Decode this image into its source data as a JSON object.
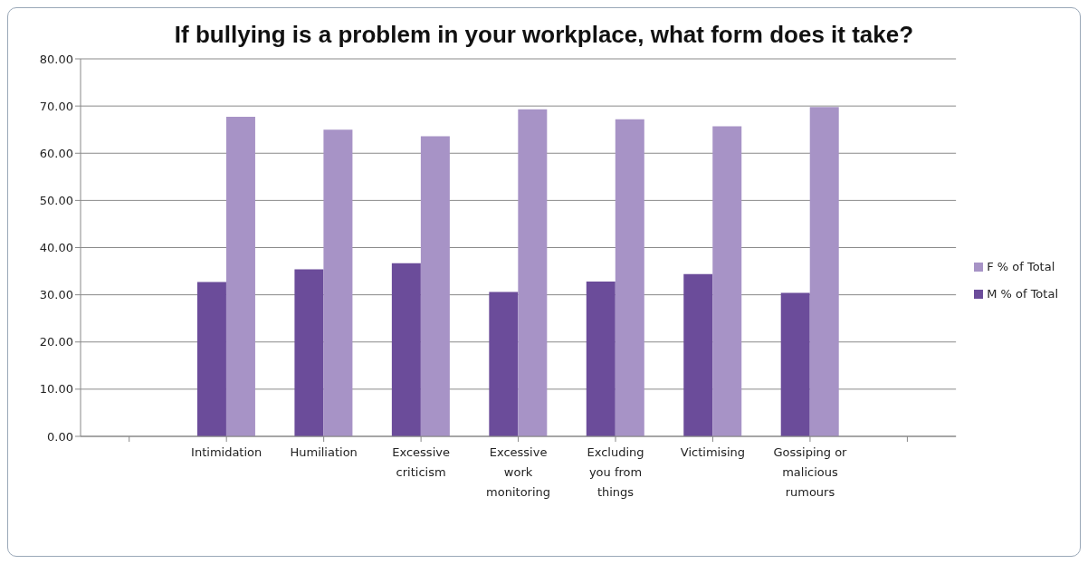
{
  "chart_data": {
    "type": "bar",
    "title": "If bullying is a problem in your workplace, what form does it take?",
    "categories": [
      null,
      "Intimidation",
      "Humiliation",
      "Excessive criticism",
      "Excessive work monitoring",
      "Excluding you from things",
      "Victimising",
      "Gossiping or malicious rumours",
      null
    ],
    "series": [
      {
        "name": "M % of Total",
        "color": "#6b4c9a",
        "values": [
          null,
          32.7,
          35.4,
          36.7,
          30.6,
          32.8,
          34.4,
          30.4,
          null
        ]
      },
      {
        "name": "F % of Total",
        "color": "#a793c6",
        "values": [
          null,
          67.7,
          65.0,
          63.6,
          69.3,
          67.2,
          65.7,
          69.8,
          null
        ]
      }
    ],
    "ylim": [
      0,
      80
    ],
    "yticks": [
      {
        "value": 0,
        "label": "0.00"
      },
      {
        "value": 10,
        "label": "10.00"
      },
      {
        "value": 20,
        "label": "20.00"
      },
      {
        "value": 30,
        "label": "30.00"
      },
      {
        "value": 40,
        "label": "40.00"
      },
      {
        "value": 50,
        "label": "50.00"
      },
      {
        "value": 60,
        "label": "60.00"
      },
      {
        "value": 70,
        "label": "70.00"
      },
      {
        "value": 80,
        "label": "80.00"
      }
    ],
    "grid": "y",
    "legend": "right"
  }
}
